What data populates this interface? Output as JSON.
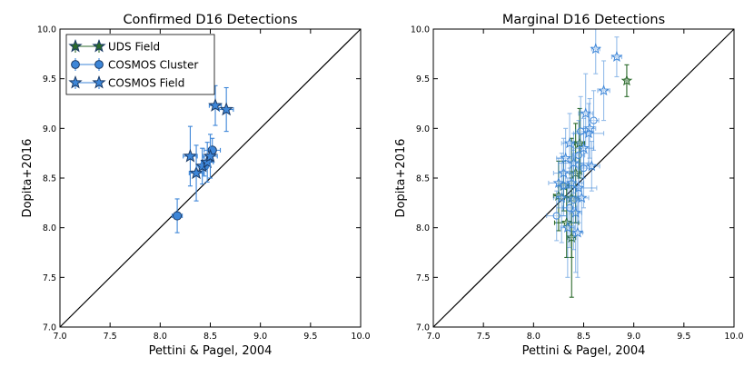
{
  "chart_data": [
    {
      "type": "scatter",
      "title": "Confirmed D16 Detections",
      "xlabel": "Pettini & Pagel, 2004",
      "ylabel": "Dopita+2016",
      "xlim": [
        7.0,
        10.0
      ],
      "ylim": [
        7.0,
        10.0
      ],
      "xticks": [
        "7.0",
        "7.5",
        "8.0",
        "8.5",
        "9.0",
        "9.5",
        "10.0"
      ],
      "yticks": [
        "7.0",
        "7.5",
        "8.0",
        "8.5",
        "9.0",
        "9.5",
        "10.0"
      ],
      "one_to_one_line": true,
      "legend": {
        "location": "upper-left",
        "entries": [
          {
            "label": "UDS Field",
            "marker": "star",
            "color": "#2b6a2b"
          },
          {
            "label": "COSMOS Cluster",
            "marker": "circle",
            "color": "#3d86d8"
          },
          {
            "label": "COSMOS Field",
            "marker": "star",
            "color": "#3d86d8"
          }
        ]
      },
      "series": [
        {
          "name": "COSMOS Cluster",
          "marker": "circle",
          "color": "#3d86d8",
          "points": [
            {
              "x": 8.17,
              "y": 8.12,
              "xerr": 0.05,
              "yerr": 0.17
            },
            {
              "x": 8.44,
              "y": 8.62,
              "xerr": 0.06,
              "yerr": 0.1
            },
            {
              "x": 8.52,
              "y": 8.78,
              "xerr": 0.08,
              "yerr": 0.12
            }
          ]
        },
        {
          "name": "COSMOS Field",
          "marker": "star",
          "color": "#3d86d8",
          "points": [
            {
              "x": 8.3,
              "y": 8.72,
              "xerr": 0.07,
              "yerr": 0.3
            },
            {
              "x": 8.36,
              "y": 8.55,
              "xerr": 0.07,
              "yerr": 0.28
            },
            {
              "x": 8.42,
              "y": 8.62,
              "xerr": 0.06,
              "yerr": 0.18
            },
            {
              "x": 8.47,
              "y": 8.66,
              "xerr": 0.06,
              "yerr": 0.2
            },
            {
              "x": 8.5,
              "y": 8.72,
              "xerr": 0.07,
              "yerr": 0.22
            },
            {
              "x": 8.55,
              "y": 9.23,
              "xerr": 0.06,
              "yerr": 0.2
            },
            {
              "x": 8.66,
              "y": 9.19,
              "xerr": 0.07,
              "yerr": 0.22
            }
          ]
        }
      ]
    },
    {
      "type": "scatter",
      "title": "Marginal D16 Detections",
      "xlabel": "Pettini & Pagel, 2004",
      "ylabel": "Dopita+2016",
      "xlim": [
        7.0,
        10.0
      ],
      "ylim": [
        7.0,
        10.0
      ],
      "xticks": [
        "7.0",
        "7.5",
        "8.0",
        "8.5",
        "9.0",
        "9.5",
        "10.0"
      ],
      "yticks": [
        "7.0",
        "7.5",
        "8.0",
        "8.5",
        "9.0",
        "9.5",
        "10.0"
      ],
      "one_to_one_line": true,
      "series": [
        {
          "name": "UDS Field",
          "marker": "star",
          "color": "#2b6a2b",
          "points": [
            {
              "x": 8.93,
              "y": 9.48,
              "xerr": 0.02,
              "yerr": 0.16
            },
            {
              "x": 8.46,
              "y": 8.85,
              "xerr": 0.05,
              "yerr": 0.35
            },
            {
              "x": 8.42,
              "y": 8.55,
              "xerr": 0.06,
              "yerr": 0.5
            },
            {
              "x": 8.38,
              "y": 8.3,
              "xerr": 0.07,
              "yerr": 0.6
            },
            {
              "x": 8.25,
              "y": 8.32,
              "xerr": 0.05,
              "yerr": 0.35
            },
            {
              "x": 8.33,
              "y": 8.05,
              "xerr": 0.12,
              "yerr": 0.35
            },
            {
              "x": 8.38,
              "y": 7.9,
              "xerr": 0.04,
              "yerr": 0.6
            },
            {
              "x": 8.3,
              "y": 8.42,
              "xerr": 0.05,
              "yerr": 0.25
            }
          ]
        },
        {
          "name": "COSMOS Cluster",
          "marker": "circle",
          "color": "#3d86d8",
          "points": [
            {
              "x": 8.23,
              "y": 8.12,
              "xerr": 0.1,
              "yerr": 0.25
            },
            {
              "x": 8.3,
              "y": 8.42,
              "xerr": 0.06,
              "yerr": 0.3
            },
            {
              "x": 8.4,
              "y": 8.28,
              "xerr": 0.07,
              "yerr": 0.5
            },
            {
              "x": 8.47,
              "y": 8.97,
              "xerr": 0.05,
              "yerr": 0.35
            },
            {
              "x": 8.5,
              "y": 8.6,
              "xerr": 0.06,
              "yerr": 0.4
            },
            {
              "x": 8.6,
              "y": 9.08,
              "xerr": 0.05,
              "yerr": 0.3
            },
            {
              "x": 8.36,
              "y": 8.2,
              "xerr": 0.07,
              "yerr": 0.4
            },
            {
              "x": 8.45,
              "y": 8.73,
              "xerr": 0.06,
              "yerr": 0.35
            }
          ]
        },
        {
          "name": "COSMOS Field",
          "marker": "star",
          "color": "#3d86d8",
          "points": [
            {
              "x": 8.62,
              "y": 9.8,
              "xerr": 0.04,
              "yerr": 0.25
            },
            {
              "x": 8.83,
              "y": 9.72,
              "xerr": 0.05,
              "yerr": 0.2
            },
            {
              "x": 8.7,
              "y": 9.38,
              "xerr": 0.06,
              "yerr": 0.3
            },
            {
              "x": 8.52,
              "y": 9.15,
              "xerr": 0.07,
              "yerr": 0.4
            },
            {
              "x": 8.55,
              "y": 8.95,
              "xerr": 0.15,
              "yerr": 0.3
            },
            {
              "x": 8.4,
              "y": 8.65,
              "xerr": 0.15,
              "yerr": 0.3
            },
            {
              "x": 8.38,
              "y": 8.45,
              "xerr": 0.12,
              "yerr": 0.4
            },
            {
              "x": 8.3,
              "y": 8.55,
              "xerr": 0.1,
              "yerr": 0.35
            },
            {
              "x": 8.28,
              "y": 8.3,
              "xerr": 0.08,
              "yerr": 0.45
            },
            {
              "x": 8.34,
              "y": 8.0,
              "xerr": 0.07,
              "yerr": 0.5
            },
            {
              "x": 8.45,
              "y": 8.4,
              "xerr": 0.18,
              "yerr": 0.35
            },
            {
              "x": 8.5,
              "y": 8.8,
              "xerr": 0.1,
              "yerr": 0.3
            },
            {
              "x": 8.42,
              "y": 8.15,
              "xerr": 0.06,
              "yerr": 0.6
            },
            {
              "x": 8.58,
              "y": 8.62,
              "xerr": 0.08,
              "yerr": 0.25
            },
            {
              "x": 8.32,
              "y": 8.7,
              "xerr": 0.09,
              "yerr": 0.3
            },
            {
              "x": 8.48,
              "y": 8.3,
              "xerr": 0.07,
              "yerr": 0.35
            },
            {
              "x": 8.25,
              "y": 8.45,
              "xerr": 0.1,
              "yerr": 0.25
            },
            {
              "x": 8.36,
              "y": 8.85,
              "xerr": 0.08,
              "yerr": 0.3
            },
            {
              "x": 8.44,
              "y": 7.95,
              "xerr": 0.05,
              "yerr": 0.45
            },
            {
              "x": 8.56,
              "y": 9.0,
              "xerr": 0.06,
              "yerr": 0.3
            }
          ]
        }
      ]
    }
  ]
}
